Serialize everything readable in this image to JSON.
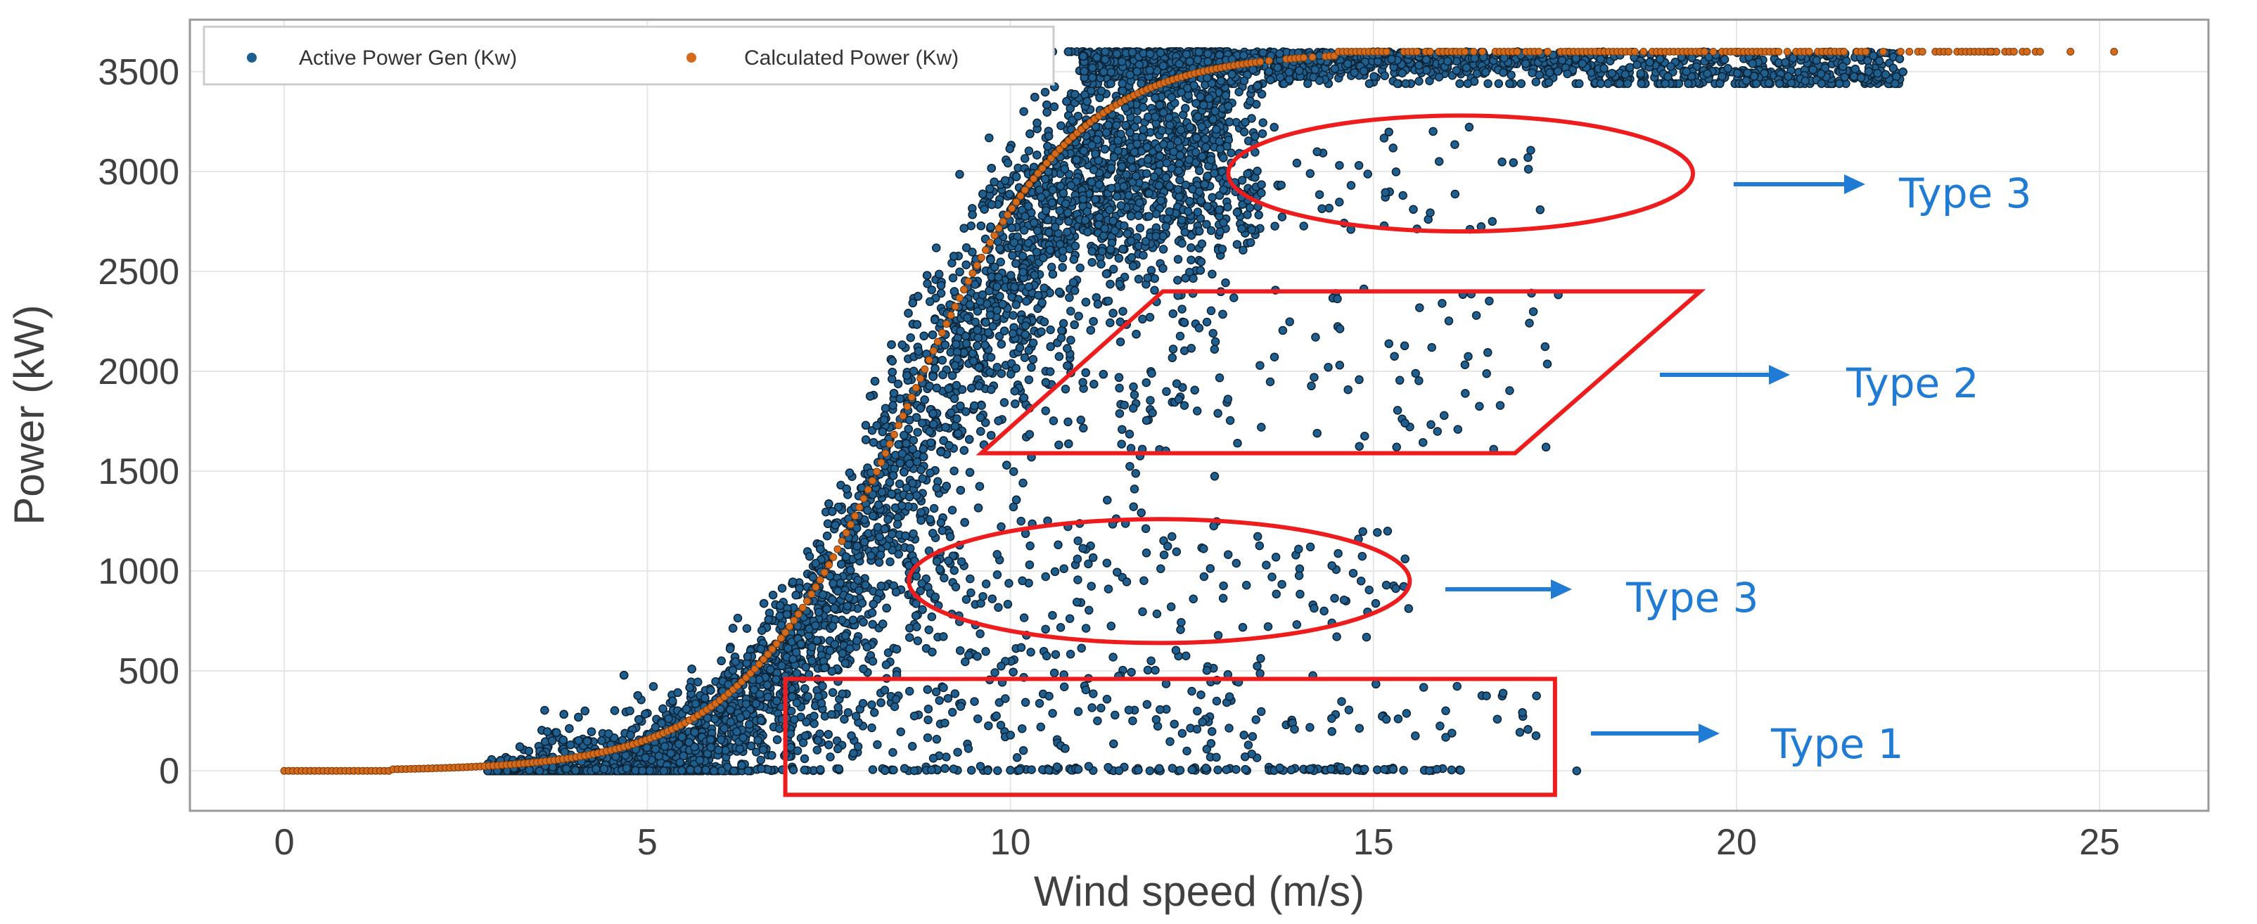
{
  "chart_data": {
    "type": "scatter",
    "title": "",
    "xlabel": "Wind speed (m/s)",
    "ylabel": "Power (kW)",
    "xlim": [
      -1.3,
      26.5
    ],
    "ylim": [
      -200,
      3760
    ],
    "x_ticks": [
      0,
      5,
      10,
      15,
      20,
      25
    ],
    "y_ticks": [
      0,
      500,
      1000,
      1500,
      2000,
      2500,
      3000,
      3500
    ],
    "grid": true,
    "legend_position": "top-left",
    "series": [
      {
        "name": "Active Power Gen (Kw)",
        "color": "#1f5f8f",
        "edge_color": "#0d2233",
        "approx_points": 8000
      },
      {
        "name": "Calculated Power (Kw)",
        "color": "#d46a1a",
        "rated_power": 3600,
        "cut_in_speed": 3,
        "rated_speed": 12.5,
        "x_max": 25.2
      }
    ],
    "annotations": [
      {
        "label": "Type 3",
        "shape": "ellipse",
        "x_range": [
          13,
          19.4
        ],
        "y_range": [
          2700,
          3280
        ]
      },
      {
        "label": "Type 2",
        "shape": "parallelogram",
        "x_range": [
          9.6,
          19.5
        ],
        "y_range": [
          1590,
          2400
        ]
      },
      {
        "label": "Type 3",
        "shape": "ellipse",
        "x_range": [
          8.6,
          15.5
        ],
        "y_range": [
          640,
          1260
        ]
      },
      {
        "label": "Type 1",
        "shape": "rectangle",
        "x_range": [
          6.9,
          17.5
        ],
        "y_range": [
          -120,
          460
        ]
      }
    ]
  },
  "legend": {
    "items": [
      {
        "label": "Active Power Gen (Kw)",
        "color": "#1f5f8f"
      },
      {
        "label": "Calculated Power (Kw)",
        "color": "#d46a1a"
      }
    ]
  }
}
